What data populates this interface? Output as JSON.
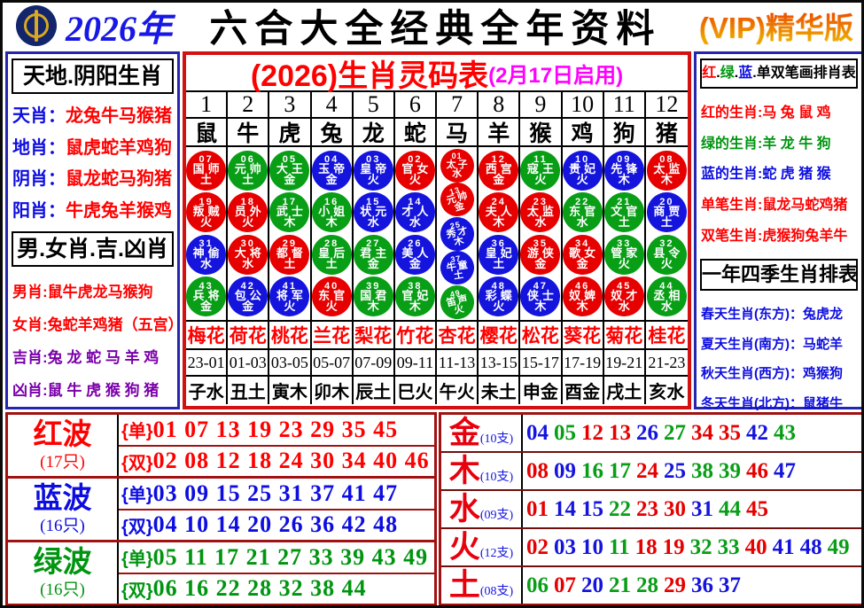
{
  "colors": {
    "r": "#e60000",
    "g": "#089e16",
    "b": "#1414dd"
  },
  "text_colors": {
    "red": "#ff0000",
    "green": "#009510",
    "blue": "#0d0de0",
    "purple": "#7a00aa",
    "black": "#000000",
    "magenta": "#ff00ff"
  },
  "header": {
    "year": "2026年",
    "title": "六合大全经典全年资料",
    "vip": "(VIP)精华版"
  },
  "left_sidebar": {
    "section1": {
      "title": "天地.阴阳生肖",
      "rows": [
        {
          "label": "天肖：",
          "value": "龙兔牛马猴猪",
          "label_color": "blue",
          "value_color": "red"
        },
        {
          "label": "地肖：",
          "value": "鼠虎蛇羊鸡狗",
          "label_color": "blue",
          "value_color": "red"
        },
        {
          "label": "阴肖：",
          "value": "鼠龙蛇马狗猪",
          "label_color": "blue",
          "value_color": "red"
        },
        {
          "label": "阳肖：",
          "value": "牛虎兔羊猴鸡",
          "label_color": "blue",
          "value_color": "red"
        }
      ]
    },
    "section2": {
      "title": "男.女肖.吉.凶肖",
      "rows": [
        {
          "label": "男肖:",
          "value": "鼠牛虎龙马猴狗",
          "label_color": "red",
          "value_color": "red"
        },
        {
          "label": "女肖:",
          "value": "兔蛇羊鸡猪（五宫）",
          "label_color": "red",
          "value_color": "red"
        },
        {
          "label": "吉肖:",
          "value": "兔 龙 蛇 马 羊 鸡",
          "label_color": "purple",
          "value_color": "purple"
        },
        {
          "label": "凶肖:",
          "value": "鼠 牛 虎 猴 狗 猪",
          "label_color": "purple",
          "value_color": "purple"
        }
      ]
    }
  },
  "main_table": {
    "title": "(2026)生肖灵码表",
    "subtitle": "(2月17日启用)",
    "columns": [
      {
        "num": "1",
        "animal": "鼠",
        "flower": "梅花",
        "range": "23-01",
        "branch": "子水",
        "balls": [
          {
            "n": "07",
            "t": "国师",
            "e": "土",
            "c": "r"
          },
          {
            "n": "19",
            "t": "叛贼",
            "e": "火",
            "c": "r"
          },
          {
            "n": "31",
            "t": "神偷",
            "e": "水",
            "c": "b"
          },
          {
            "n": "43",
            "t": "兵将",
            "e": "金",
            "c": "g"
          }
        ]
      },
      {
        "num": "2",
        "animal": "牛",
        "flower": "荷花",
        "range": "01-03",
        "branch": "丑土",
        "balls": [
          {
            "n": "06",
            "t": "元帅",
            "e": "土",
            "c": "g"
          },
          {
            "n": "18",
            "t": "员外",
            "e": "火",
            "c": "r"
          },
          {
            "n": "30",
            "t": "大将",
            "e": "水",
            "c": "r"
          },
          {
            "n": "42",
            "t": "包公",
            "e": "金",
            "c": "b"
          }
        ]
      },
      {
        "num": "3",
        "animal": "虎",
        "flower": "桃花",
        "range": "03-05",
        "branch": "寅木",
        "balls": [
          {
            "n": "05",
            "t": "大王",
            "e": "金",
            "c": "g"
          },
          {
            "n": "17",
            "t": "武士",
            "e": "木",
            "c": "g"
          },
          {
            "n": "29",
            "t": "都督",
            "e": "土",
            "c": "r"
          },
          {
            "n": "41",
            "t": "将军",
            "e": "火",
            "c": "b"
          }
        ]
      },
      {
        "num": "4",
        "animal": "兔",
        "flower": "兰花",
        "range": "05-07",
        "branch": "卯木",
        "balls": [
          {
            "n": "04",
            "t": "玉帝",
            "e": "金",
            "c": "b"
          },
          {
            "n": "16",
            "t": "小姐",
            "e": "木",
            "c": "g"
          },
          {
            "n": "28",
            "t": "皇后",
            "e": "土",
            "c": "g"
          },
          {
            "n": "40",
            "t": "东官",
            "e": "火",
            "c": "r"
          }
        ]
      },
      {
        "num": "5",
        "animal": "龙",
        "flower": "梨花",
        "range": "07-09",
        "branch": "辰土",
        "balls": [
          {
            "n": "03",
            "t": "皇帝",
            "e": "火",
            "c": "b"
          },
          {
            "n": "15",
            "t": "状元",
            "e": "水",
            "c": "b"
          },
          {
            "n": "27",
            "t": "君主",
            "e": "金",
            "c": "g"
          },
          {
            "n": "39",
            "t": "国君",
            "e": "木",
            "c": "g"
          }
        ]
      },
      {
        "num": "6",
        "animal": "蛇",
        "flower": "竹花",
        "range": "09-11",
        "branch": "巳火",
        "balls": [
          {
            "n": "02",
            "t": "官女",
            "e": "火",
            "c": "r"
          },
          {
            "n": "14",
            "t": "才人",
            "e": "水",
            "c": "b"
          },
          {
            "n": "26",
            "t": "美人",
            "e": "金",
            "c": "b"
          },
          {
            "n": "38",
            "t": "官妃",
            "e": "木",
            "c": "g"
          }
        ]
      },
      {
        "num": "7",
        "animal": "马",
        "flower": "杏花",
        "range": "11-13",
        "branch": "午火",
        "balls": [
          {
            "n": "01",
            "t": "太子",
            "e": "水",
            "c": "r"
          },
          {
            "n": "13",
            "t": "元帅",
            "e": "金",
            "c": "r"
          },
          {
            "n": "25",
            "t": "秀才",
            "e": "木",
            "c": "b"
          },
          {
            "n": "37",
            "t": "牛童",
            "e": "土",
            "c": "b"
          },
          {
            "n": "49",
            "t": "笛声",
            "e": "火",
            "c": "g"
          }
        ]
      },
      {
        "num": "8",
        "animal": "羊",
        "flower": "樱花",
        "range": "13-15",
        "branch": "未土",
        "balls": [
          {
            "n": "12",
            "t": "西宫",
            "e": "金",
            "c": "r"
          },
          {
            "n": "24",
            "t": "夫人",
            "e": "木",
            "c": "r"
          },
          {
            "n": "36",
            "t": "皇妃",
            "e": "土",
            "c": "b"
          },
          {
            "n": "48",
            "t": "彩蝶",
            "e": "火",
            "c": "b"
          }
        ]
      },
      {
        "num": "9",
        "animal": "猴",
        "flower": "松花",
        "range": "15-17",
        "branch": "申金",
        "balls": [
          {
            "n": "11",
            "t": "寇王",
            "e": "火",
            "c": "g"
          },
          {
            "n": "23",
            "t": "太监",
            "e": "水",
            "c": "r"
          },
          {
            "n": "35",
            "t": "游侠",
            "e": "金",
            "c": "r"
          },
          {
            "n": "47",
            "t": "侠士",
            "e": "木",
            "c": "b"
          }
        ]
      },
      {
        "num": "10",
        "animal": "鸡",
        "flower": "葵花",
        "range": "17-19",
        "branch": "酉金",
        "balls": [
          {
            "n": "10",
            "t": "贵妃",
            "e": "火",
            "c": "b"
          },
          {
            "n": "22",
            "t": "东官",
            "e": "水",
            "c": "g"
          },
          {
            "n": "34",
            "t": "歌女",
            "e": "金",
            "c": "r"
          },
          {
            "n": "46",
            "t": "奴婢",
            "e": "木",
            "c": "r"
          }
        ]
      },
      {
        "num": "11",
        "animal": "狗",
        "flower": "菊花",
        "range": "19-21",
        "branch": "戌土",
        "balls": [
          {
            "n": "09",
            "t": "先锋",
            "e": "木",
            "c": "b"
          },
          {
            "n": "21",
            "t": "文官",
            "e": "土",
            "c": "g"
          },
          {
            "n": "33",
            "t": "管家",
            "e": "火",
            "c": "g"
          },
          {
            "n": "45",
            "t": "奴才",
            "e": "水",
            "c": "r"
          }
        ]
      },
      {
        "num": "12",
        "animal": "猪",
        "flower": "桂花",
        "range": "21-23",
        "branch": "亥水",
        "balls": [
          {
            "n": "08",
            "t": "太监",
            "e": "木",
            "c": "r"
          },
          {
            "n": "20",
            "t": "商贾",
            "e": "土",
            "c": "b"
          },
          {
            "n": "32",
            "t": "县令",
            "e": "火",
            "c": "g"
          },
          {
            "n": "44",
            "t": "丞相",
            "e": "水",
            "c": "g"
          }
        ]
      }
    ]
  },
  "right_sidebar": {
    "section1": {
      "title_parts": [
        {
          "t": "红",
          "c": "red"
        },
        {
          "t": ".",
          "c": "black"
        },
        {
          "t": "绿",
          "c": "green"
        },
        {
          "t": ".",
          "c": "black"
        },
        {
          "t": "蓝",
          "c": "blue"
        },
        {
          "t": ".",
          "c": "black"
        },
        {
          "t": "单双笔画排肖表",
          "c": "black"
        }
      ],
      "rows": [
        {
          "label": "红的生肖:",
          "value": "马 兔 鼠 鸡",
          "label_color": "red",
          "value_color": "red"
        },
        {
          "label": "绿的生肖:",
          "value": "羊 龙 牛 狗",
          "label_color": "green",
          "value_color": "green"
        },
        {
          "label": "蓝的生肖:",
          "value": "蛇 虎 猪 猴",
          "label_color": "blue",
          "value_color": "blue"
        },
        {
          "label": "单笔生肖:",
          "value": "鼠龙马蛇鸡猪",
          "label_color": "red",
          "value_color": "red"
        },
        {
          "label": "双笔生肖:",
          "value": "虎猴狗兔羊牛",
          "label_color": "red",
          "value_color": "red"
        }
      ]
    },
    "section2": {
      "title": "一年四季生肖排表",
      "rows": [
        {
          "label": "春天生肖(东方)：",
          "value": "兔虎龙",
          "label_color": "blue",
          "value_color": "blue"
        },
        {
          "label": "夏天生肖(南方)：",
          "value": "马蛇羊",
          "label_color": "blue",
          "value_color": "blue"
        },
        {
          "label": "秋天生肖(西方)：",
          "value": "鸡猴狗",
          "label_color": "blue",
          "value_color": "blue"
        },
        {
          "label": "冬天生肖(北方)：",
          "value": "鼠猪牛",
          "label_color": "blue",
          "value_color": "blue"
        }
      ]
    }
  },
  "waves": [
    {
      "name": "红波",
      "count": "(17只)",
      "color": "red",
      "rows": [
        {
          "tag": "{单}",
          "nums": "01 07 13 19 23 29 35 45"
        },
        {
          "tag": "{双}",
          "nums": "02 08 12 18 24 30 34 40 46"
        }
      ]
    },
    {
      "name": "蓝波",
      "count": "(16只)",
      "color": "blue",
      "rows": [
        {
          "tag": "{单}",
          "nums": "03 09 15 25 31 37 41 47"
        },
        {
          "tag": "{双}",
          "nums": "04 10 14 20 26 36 42 48"
        }
      ]
    },
    {
      "name": "绿波",
      "count": "(16只)",
      "color": "green",
      "rows": [
        {
          "tag": "{单}",
          "nums": "05 11 17 21 27 33 39 43 49"
        },
        {
          "tag": "{双}",
          "nums": "06 16 22 28 32 38 44"
        }
      ]
    }
  ],
  "elements": [
    {
      "name": "金",
      "count": "(10支)",
      "numbers": [
        {
          "v": "04",
          "c": "b"
        },
        {
          "v": "05",
          "c": "g"
        },
        {
          "v": "12",
          "c": "r"
        },
        {
          "v": "13",
          "c": "r"
        },
        {
          "v": "26",
          "c": "b"
        },
        {
          "v": "27",
          "c": "g"
        },
        {
          "v": "34",
          "c": "r"
        },
        {
          "v": "35",
          "c": "r"
        },
        {
          "v": "42",
          "c": "b"
        },
        {
          "v": "43",
          "c": "g"
        }
      ]
    },
    {
      "name": "木",
      "count": "(10支)",
      "numbers": [
        {
          "v": "08",
          "c": "r"
        },
        {
          "v": "09",
          "c": "b"
        },
        {
          "v": "16",
          "c": "g"
        },
        {
          "v": "17",
          "c": "g"
        },
        {
          "v": "24",
          "c": "r"
        },
        {
          "v": "25",
          "c": "b"
        },
        {
          "v": "38",
          "c": "g"
        },
        {
          "v": "39",
          "c": "g"
        },
        {
          "v": "46",
          "c": "r"
        },
        {
          "v": "47",
          "c": "b"
        }
      ]
    },
    {
      "name": "水",
      "count": "(09支)",
      "numbers": [
        {
          "v": "01",
          "c": "r"
        },
        {
          "v": "14",
          "c": "b"
        },
        {
          "v": "15",
          "c": "b"
        },
        {
          "v": "22",
          "c": "g"
        },
        {
          "v": "23",
          "c": "r"
        },
        {
          "v": "30",
          "c": "r"
        },
        {
          "v": "31",
          "c": "b"
        },
        {
          "v": "44",
          "c": "g"
        },
        {
          "v": "45",
          "c": "r"
        }
      ]
    },
    {
      "name": "火",
      "count": "(12支)",
      "numbers": [
        {
          "v": "02",
          "c": "r"
        },
        {
          "v": "03",
          "c": "b"
        },
        {
          "v": "10",
          "c": "b"
        },
        {
          "v": "11",
          "c": "g"
        },
        {
          "v": "18",
          "c": "r"
        },
        {
          "v": "19",
          "c": "r"
        },
        {
          "v": "32",
          "c": "g"
        },
        {
          "v": "33",
          "c": "g"
        },
        {
          "v": "40",
          "c": "r"
        },
        {
          "v": "41",
          "c": "b"
        },
        {
          "v": "48",
          "c": "b"
        },
        {
          "v": "49",
          "c": "g"
        }
      ]
    },
    {
      "name": "土",
      "count": "(08支)",
      "numbers": [
        {
          "v": "06",
          "c": "g"
        },
        {
          "v": "07",
          "c": "r"
        },
        {
          "v": "20",
          "c": "b"
        },
        {
          "v": "21",
          "c": "g"
        },
        {
          "v": "28",
          "c": "g"
        },
        {
          "v": "29",
          "c": "r"
        },
        {
          "v": "36",
          "c": "b"
        },
        {
          "v": "37",
          "c": "b"
        }
      ]
    }
  ]
}
